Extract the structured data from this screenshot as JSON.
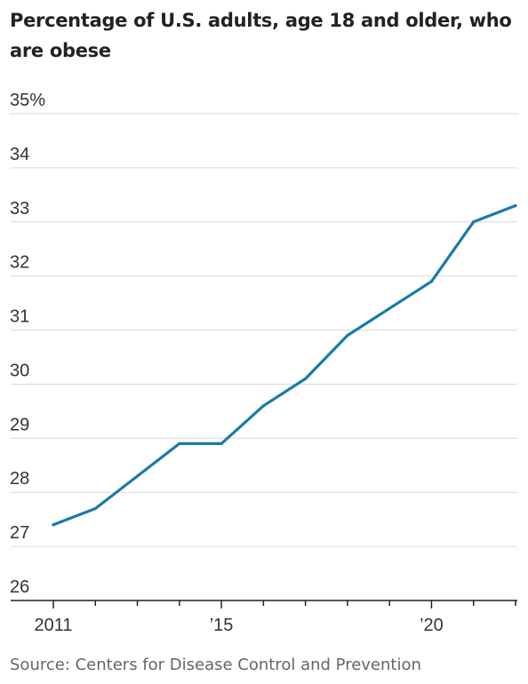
{
  "chart_data": {
    "type": "line",
    "title": "Percentage of U.S. adults, age 18 and older, who are obese",
    "source": "Source: Centers for Disease Control and Prevention",
    "xlabel": "",
    "ylabel": "",
    "x": [
      2011,
      2012,
      2013,
      2014,
      2015,
      2016,
      2017,
      2018,
      2019,
      2020,
      2021,
      2022
    ],
    "x_tick_values": [
      2011,
      2015,
      2020
    ],
    "x_tick_labels": [
      "2011",
      "’15",
      "’20"
    ],
    "y_ticks": [
      26,
      27,
      28,
      29,
      30,
      31,
      32,
      33,
      34,
      35
    ],
    "y_tick_labels": [
      "26",
      "27",
      "28",
      "29",
      "30",
      "31",
      "32",
      "33",
      "34",
      "35%"
    ],
    "ylim": [
      26,
      35
    ],
    "xlim": [
      2011,
      2022
    ],
    "grid": true,
    "series": [
      {
        "values": [
          27.4,
          27.7,
          28.3,
          28.9,
          28.9,
          29.6,
          30.1,
          30.9,
          31.4,
          31.9,
          33.0,
          33.3
        ]
      }
    ],
    "colors": {
      "line": "#1a7aab",
      "grid": "#d9d9d9",
      "axis": "#222222"
    }
  }
}
